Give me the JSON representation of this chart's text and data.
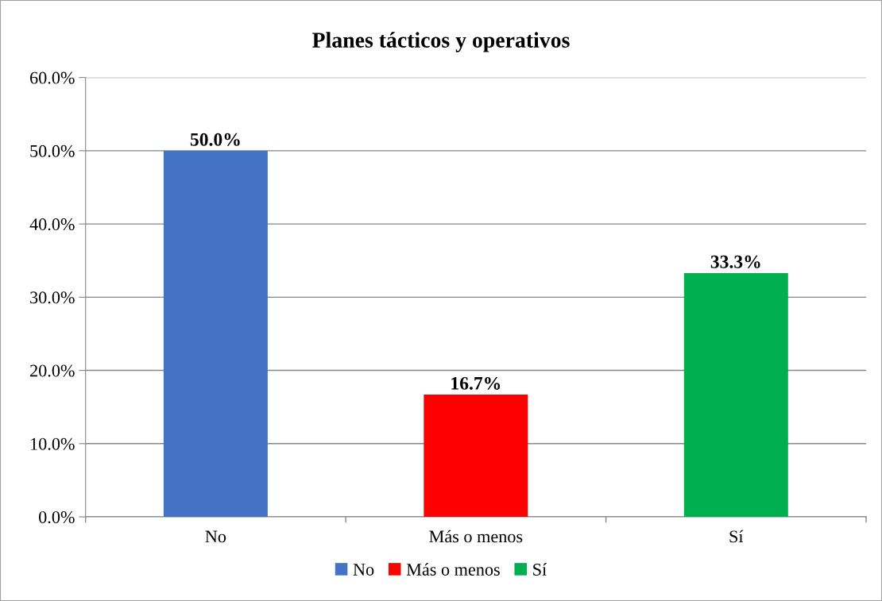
{
  "chart_data": {
    "type": "bar",
    "title": "Planes tácticos y operativos",
    "categories": [
      "No",
      "Más o menos",
      "Sí"
    ],
    "series": [
      {
        "name": "No",
        "color": "#4472c4",
        "values": [
          50.0,
          null,
          null
        ],
        "value_labels": [
          "50.0%",
          null,
          null
        ]
      },
      {
        "name": "Más o menos",
        "color": "#ff0000",
        "values": [
          null,
          16.7,
          null
        ],
        "value_labels": [
          null,
          "16.7%",
          null
        ]
      },
      {
        "name": "Sí",
        "color": "#00b050",
        "values": [
          null,
          null,
          33.3
        ],
        "value_labels": [
          null,
          null,
          "33.3%"
        ]
      }
    ],
    "ylim": [
      0,
      60
    ],
    "yticks": [
      {
        "value": 0,
        "label": "0.0%"
      },
      {
        "value": 10,
        "label": "10.0%"
      },
      {
        "value": 20,
        "label": "20.0%"
      },
      {
        "value": 30,
        "label": "30.0%"
      },
      {
        "value": 40,
        "label": "40.0%"
      },
      {
        "value": 50,
        "label": "50.0%"
      },
      {
        "value": 60,
        "label": "60.0%"
      }
    ],
    "grid": "y",
    "legend": "bottom"
  }
}
